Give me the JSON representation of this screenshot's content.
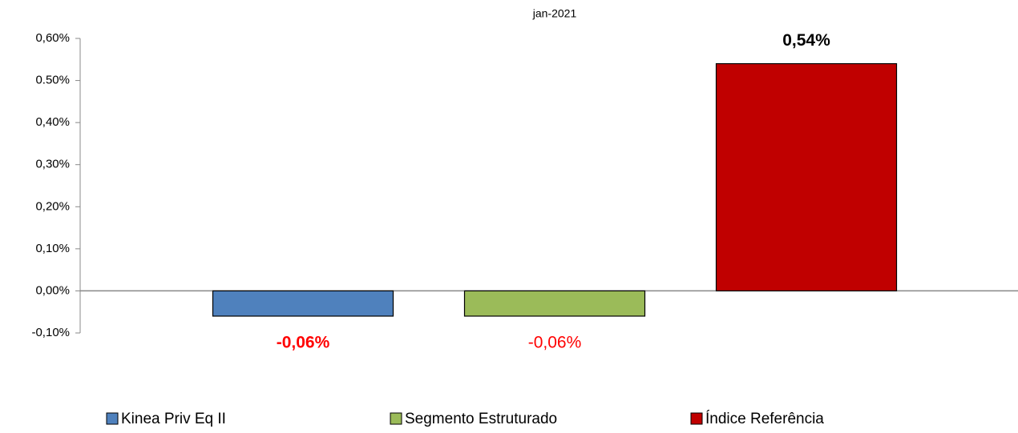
{
  "chart_data": {
    "type": "bar",
    "categories": [
      "jan-2021"
    ],
    "series": [
      {
        "name": "Kinea Priv Eq II",
        "color": "#4f81bd",
        "values": [
          -0.06
        ],
        "value_labels": [
          "-0,06%"
        ]
      },
      {
        "name": "Segmento Estruturado",
        "color": "#9bbb59",
        "values": [
          -0.06
        ],
        "value_labels": [
          "-0,06%"
        ]
      },
      {
        "name": "Índice Referência",
        "color": "#c00000",
        "values": [
          0.54
        ],
        "value_labels": [
          "0,54%"
        ]
      }
    ],
    "ylim": [
      -0.1,
      0.6
    ],
    "yticks": [
      {
        "value": -0.1,
        "label": "-0,10%"
      },
      {
        "value": 0,
        "label": "0,00%"
      },
      {
        "value": 0.1,
        "label": "0,10%"
      },
      {
        "value": 0.2,
        "label": "0,20%"
      },
      {
        "value": 0.3,
        "label": "0,30%"
      },
      {
        "value": 0.4,
        "label": "0,40%"
      },
      {
        "value": 0.5,
        "label": "0.50%"
      },
      {
        "value": 0.6,
        "label": "0,60%"
      }
    ],
    "grid": false,
    "legend": "bottom"
  }
}
